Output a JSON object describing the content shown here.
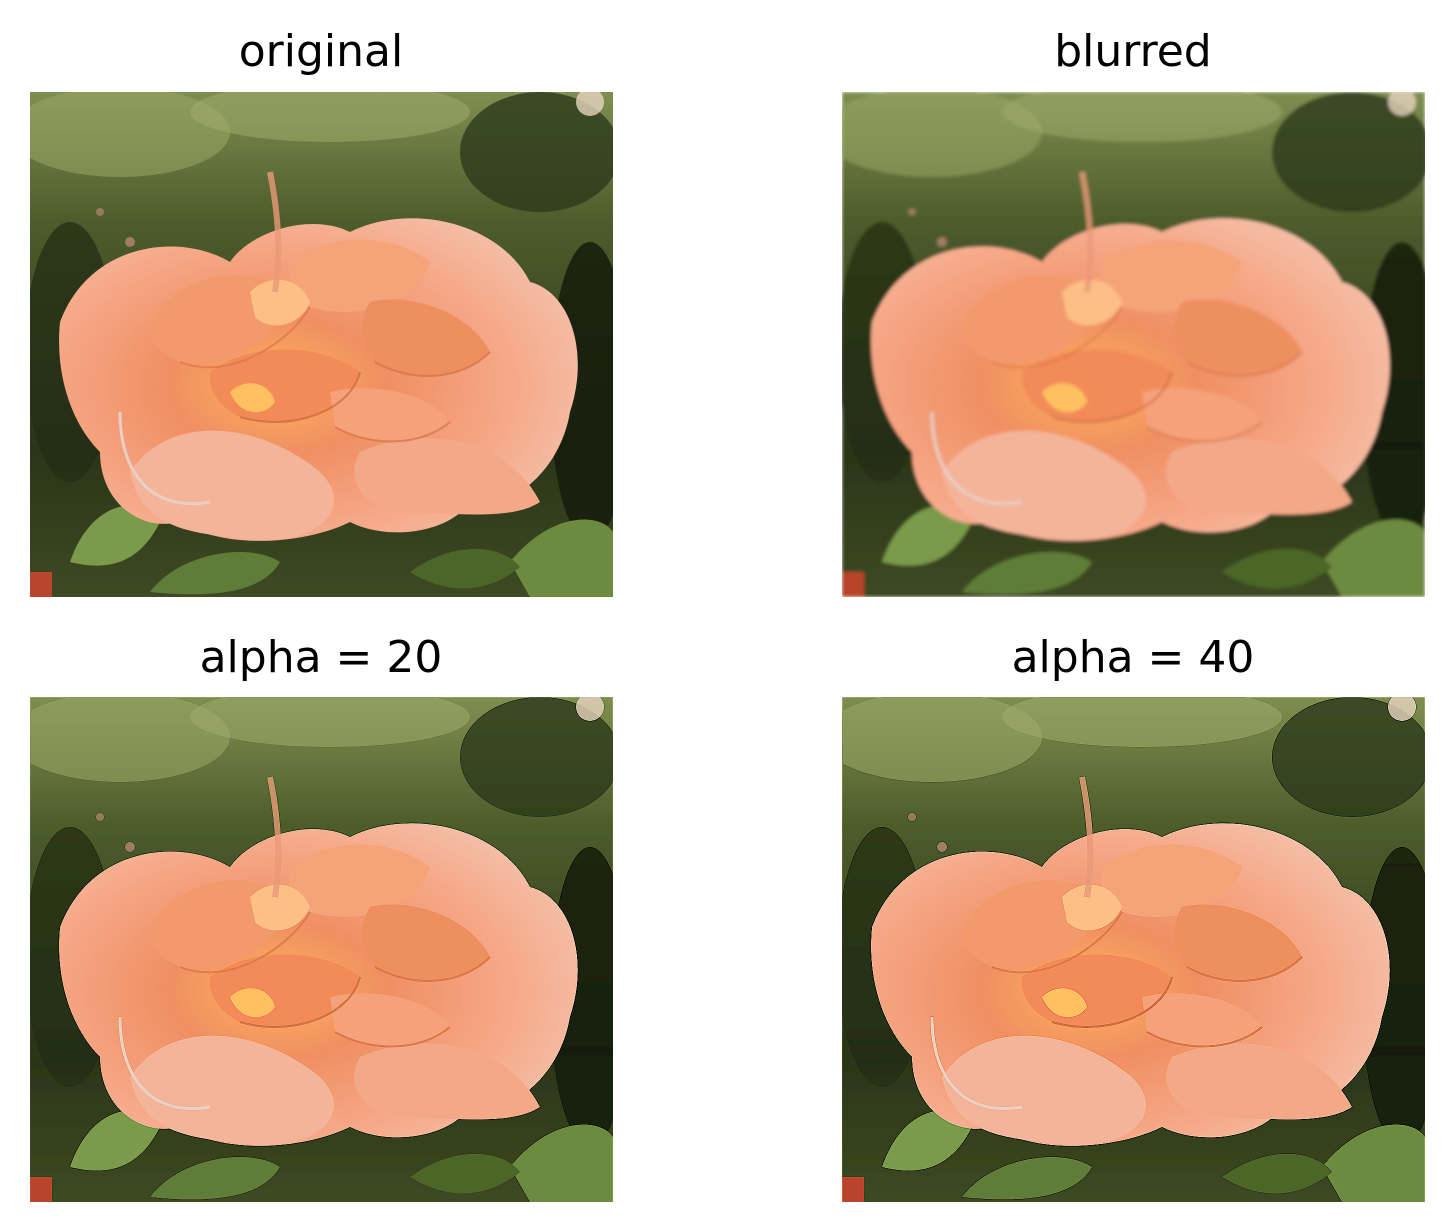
{
  "panels": [
    {
      "title": "original",
      "image": "rose-photo",
      "variant": "original"
    },
    {
      "title": "blurred",
      "image": "rose-photo",
      "variant": "blurred"
    },
    {
      "title": "alpha = 20",
      "image": "rose-photo",
      "variant": "sharpened"
    },
    {
      "title": "alpha = 40",
      "image": "rose-photo",
      "variant": "sharpened-strong"
    }
  ],
  "colors": {
    "background": "#ffffff",
    "foliage_dark": "#1f2a12",
    "foliage_mid": "#4a5c2c",
    "foliage_light": "#8fa56a",
    "petal_light": "#f6b394",
    "petal_mid": "#f08f63",
    "petal_dark": "#cf6a3d",
    "petal_highlight": "#fcd9b8"
  }
}
